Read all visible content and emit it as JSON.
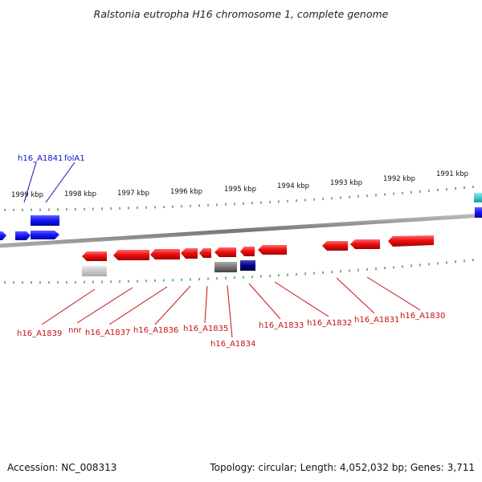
{
  "title": "Ralstonia eutropha H16 chromosome 1, complete genome",
  "footer": {
    "accession": "Accession: NC_008313",
    "summary": "Topology: circular; Length: 4,052,032 bp; Genes: 3,711"
  },
  "kbp_labels": [
    "1999 kbp",
    "1998 kbp",
    "1997 kbp",
    "1996 kbp",
    "1995 kbp",
    "1994 kbp",
    "1993 kbp",
    "1992 kbp",
    "1991 kbp"
  ],
  "top_gene_labels": [
    "h16_A1841",
    "folA1"
  ],
  "bottom_gene_labels": [
    "h16_A1839",
    "nnr",
    "h16_A1837",
    "h16_A1836",
    "h16_A1835",
    "h16_A1834",
    "h16_A1833",
    "h16_A1832",
    "h16_A1831",
    "h16_A1830"
  ],
  "colors": {
    "forward_gene": "#1a1aff",
    "reverse_gene": "#ee1111",
    "gray_feature": "#777777",
    "navy_feature": "#000088",
    "cyan_feature": "#11bbcc",
    "backbone": "#888888",
    "tick": "#2a8a2a"
  }
}
